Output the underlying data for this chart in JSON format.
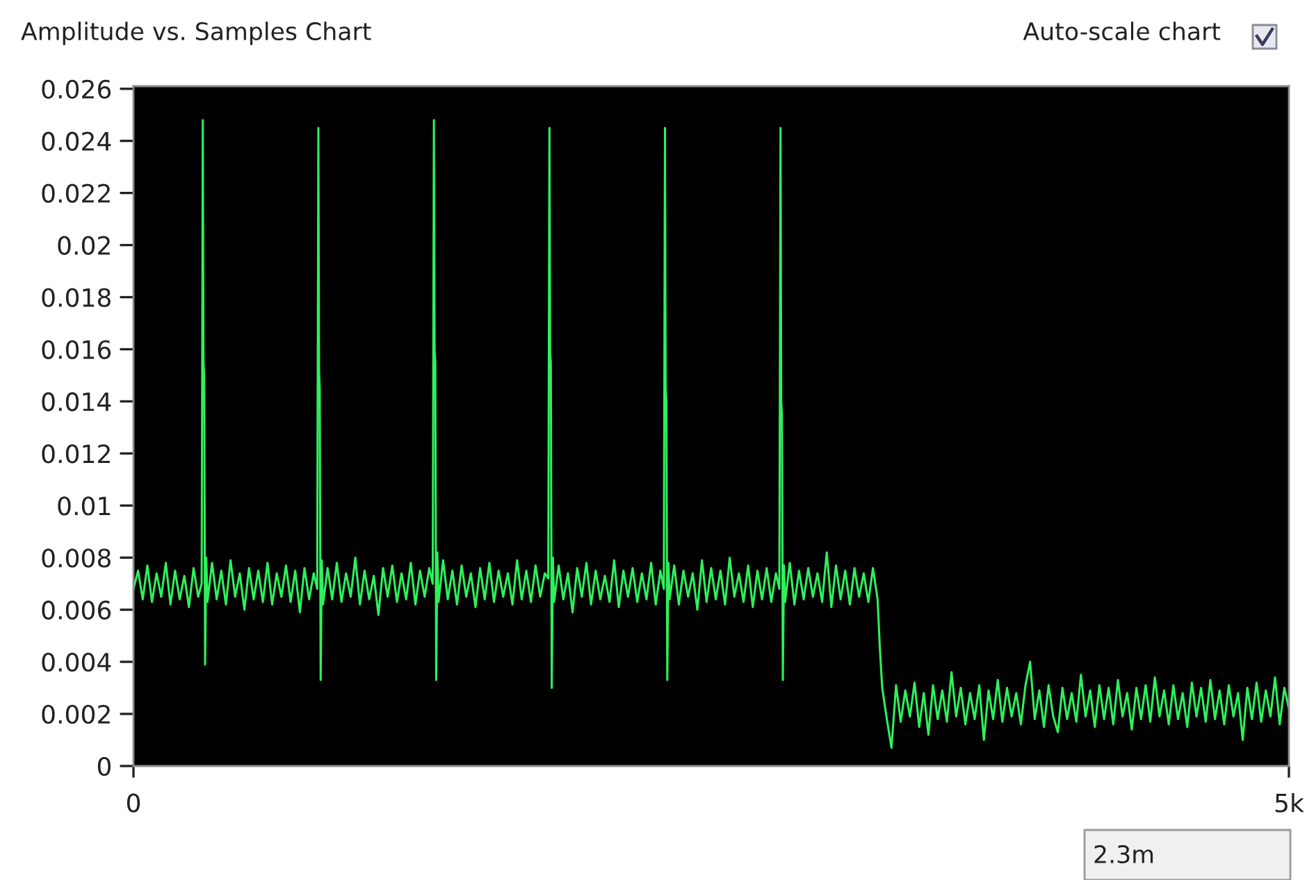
{
  "chart_data": {
    "type": "line",
    "title": "Amplitude vs. Samples Chart",
    "annotations": [
      "Auto-scale chart",
      "2.3m"
    ],
    "xlim": [
      0,
      5000
    ],
    "xticks": [
      0,
      {
        "value": 5000,
        "label": "5k"
      }
    ],
    "ylim": [
      0,
      0.0261
    ],
    "yticks": [
      0,
      0.002,
      0.004,
      0.006,
      0.008,
      0.01,
      0.012,
      0.014,
      0.016,
      0.018,
      0.02,
      0.022,
      0.024,
      0.026
    ],
    "grid": false,
    "legend": false,
    "series": [
      {
        "color": "#2ef05c",
        "x": [
          0,
          20,
          40,
          60,
          80,
          100,
          120,
          140,
          160,
          180,
          200,
          220,
          240,
          260,
          280,
          295,
          300,
          303,
          306,
          310,
          315,
          320,
          340,
          360,
          380,
          400,
          420,
          440,
          460,
          480,
          500,
          520,
          540,
          560,
          580,
          600,
          620,
          640,
          660,
          680,
          700,
          720,
          740,
          760,
          780,
          795,
          800,
          803,
          806,
          810,
          815,
          820,
          840,
          860,
          880,
          900,
          920,
          940,
          960,
          980,
          1000,
          1020,
          1040,
          1060,
          1080,
          1100,
          1120,
          1140,
          1160,
          1180,
          1200,
          1220,
          1240,
          1260,
          1280,
          1295,
          1300,
          1303,
          1306,
          1310,
          1315,
          1320,
          1340,
          1360,
          1380,
          1400,
          1420,
          1440,
          1460,
          1480,
          1500,
          1520,
          1540,
          1560,
          1580,
          1600,
          1620,
          1640,
          1660,
          1680,
          1700,
          1720,
          1740,
          1760,
          1780,
          1795,
          1800,
          1803,
          1806,
          1810,
          1815,
          1820,
          1840,
          1860,
          1880,
          1900,
          1920,
          1940,
          1960,
          1980,
          2000,
          2020,
          2040,
          2060,
          2080,
          2100,
          2120,
          2140,
          2160,
          2180,
          2200,
          2220,
          2240,
          2260,
          2280,
          2295,
          2300,
          2303,
          2306,
          2310,
          2315,
          2320,
          2340,
          2360,
          2380,
          2400,
          2420,
          2440,
          2460,
          2480,
          2500,
          2520,
          2540,
          2560,
          2580,
          2600,
          2620,
          2640,
          2660,
          2680,
          2700,
          2720,
          2740,
          2760,
          2780,
          2795,
          2800,
          2803,
          2806,
          2810,
          2815,
          2820,
          2840,
          2860,
          2880,
          2900,
          2920,
          2940,
          2960,
          2980,
          3000,
          3020,
          3040,
          3060,
          3080,
          3100,
          3120,
          3140,
          3160,
          3180,
          3200,
          3220,
          3230,
          3240,
          3260,
          3280,
          3300,
          3320,
          3340,
          3360,
          3380,
          3400,
          3420,
          3440,
          3460,
          3480,
          3500,
          3520,
          3540,
          3560,
          3580,
          3600,
          3620,
          3640,
          3660,
          3680,
          3700,
          3720,
          3740,
          3760,
          3780,
          3800,
          3820,
          3840,
          3860,
          3880,
          3900,
          3920,
          3940,
          3960,
          3980,
          4000,
          4020,
          4040,
          4060,
          4080,
          4100,
          4120,
          4140,
          4160,
          4180,
          4200,
          4220,
          4240,
          4260,
          4280,
          4300,
          4320,
          4340,
          4360,
          4380,
          4400,
          4420,
          4440,
          4460,
          4480,
          4500,
          4520,
          4540,
          4560,
          4580,
          4600,
          4620,
          4640,
          4660,
          4680,
          4700,
          4720,
          4740,
          4760,
          4780,
          4800,
          4820,
          4840,
          4860,
          4880,
          4900,
          4920,
          4940,
          4960,
          4980,
          5000
        ],
        "values": [
          0.0068,
          0.0075,
          0.0064,
          0.0077,
          0.0063,
          0.0074,
          0.0065,
          0.0078,
          0.0062,
          0.0075,
          0.0064,
          0.0073,
          0.0061,
          0.0076,
          0.0065,
          0.007,
          0.0248,
          0.0155,
          0.015,
          0.0039,
          0.008,
          0.0063,
          0.0078,
          0.0064,
          0.0075,
          0.0062,
          0.0079,
          0.0065,
          0.0074,
          0.006,
          0.0076,
          0.0064,
          0.0075,
          0.0063,
          0.0078,
          0.0062,
          0.0074,
          0.0065,
          0.0077,
          0.0063,
          0.0075,
          0.0059,
          0.0076,
          0.0064,
          0.0074,
          0.0068,
          0.0245,
          0.0152,
          0.0145,
          0.0033,
          0.0079,
          0.0062,
          0.0076,
          0.0064,
          0.0078,
          0.0063,
          0.0074,
          0.0065,
          0.008,
          0.0062,
          0.0075,
          0.0064,
          0.0073,
          0.0058,
          0.0076,
          0.0065,
          0.0077,
          0.0063,
          0.0074,
          0.0064,
          0.0078,
          0.0062,
          0.0075,
          0.0065,
          0.0076,
          0.007,
          0.0248,
          0.016,
          0.0155,
          0.0033,
          0.0082,
          0.0063,
          0.0079,
          0.0064,
          0.0075,
          0.0062,
          0.0077,
          0.0065,
          0.0074,
          0.0061,
          0.0076,
          0.0064,
          0.0078,
          0.0063,
          0.0075,
          0.0065,
          0.0074,
          0.0062,
          0.0079,
          0.0064,
          0.0075,
          0.0063,
          0.0077,
          0.0065,
          0.0074,
          0.0072,
          0.0245,
          0.0158,
          0.0155,
          0.003,
          0.008,
          0.0063,
          0.0077,
          0.0064,
          0.0074,
          0.0059,
          0.0076,
          0.0065,
          0.0078,
          0.0062,
          0.0075,
          0.0064,
          0.0073,
          0.0063,
          0.0079,
          0.0061,
          0.0075,
          0.0065,
          0.0076,
          0.0063,
          0.0074,
          0.0064,
          0.0078,
          0.0062,
          0.0075,
          0.0068,
          0.0245,
          0.0145,
          0.014,
          0.0033,
          0.0078,
          0.0064,
          0.0077,
          0.0062,
          0.0075,
          0.0065,
          0.0074,
          0.006,
          0.0079,
          0.0063,
          0.0076,
          0.0064,
          0.0075,
          0.0062,
          0.008,
          0.0065,
          0.0074,
          0.0063,
          0.0077,
          0.0061,
          0.0075,
          0.0064,
          0.0076,
          0.0063,
          0.0074,
          0.0068,
          0.0245,
          0.014,
          0.0135,
          0.0033,
          0.0077,
          0.0063,
          0.0078,
          0.0062,
          0.0075,
          0.0064,
          0.0076,
          0.0065,
          0.0074,
          0.0063,
          0.0082,
          0.0061,
          0.0077,
          0.0064,
          0.0075,
          0.0062,
          0.0076,
          0.0065,
          0.0074,
          0.0063,
          0.0076,
          0.0064,
          0.0045,
          0.003,
          0.0018,
          0.0007,
          0.0031,
          0.0017,
          0.0029,
          0.0019,
          0.0032,
          0.0015,
          0.0028,
          0.0012,
          0.0031,
          0.0018,
          0.0029,
          0.0017,
          0.0036,
          0.0019,
          0.003,
          0.0016,
          0.0028,
          0.0018,
          0.0031,
          0.001,
          0.0029,
          0.0018,
          0.0033,
          0.0017,
          0.003,
          0.0019,
          0.0028,
          0.0016,
          0.0031,
          0.004,
          0.0018,
          0.0029,
          0.0015,
          0.0031,
          0.0019,
          0.0013,
          0.003,
          0.0018,
          0.0028,
          0.0017,
          0.0035,
          0.0019,
          0.0029,
          0.0015,
          0.0031,
          0.0018,
          0.003,
          0.0016,
          0.0033,
          0.0019,
          0.0028,
          0.0014,
          0.003,
          0.0018,
          0.0031,
          0.0017,
          0.0034,
          0.0019,
          0.0029,
          0.0016,
          0.0031,
          0.0018,
          0.0028,
          0.0015,
          0.0032,
          0.0019,
          0.003,
          0.0017,
          0.0033,
          0.0018,
          0.0029,
          0.0016,
          0.0031,
          0.0019,
          0.0028,
          0.001,
          0.003,
          0.0018,
          0.0032,
          0.0017,
          0.0029,
          0.0019,
          0.0034,
          0.0016,
          0.003,
          0.0022
        ]
      }
    ]
  }
}
